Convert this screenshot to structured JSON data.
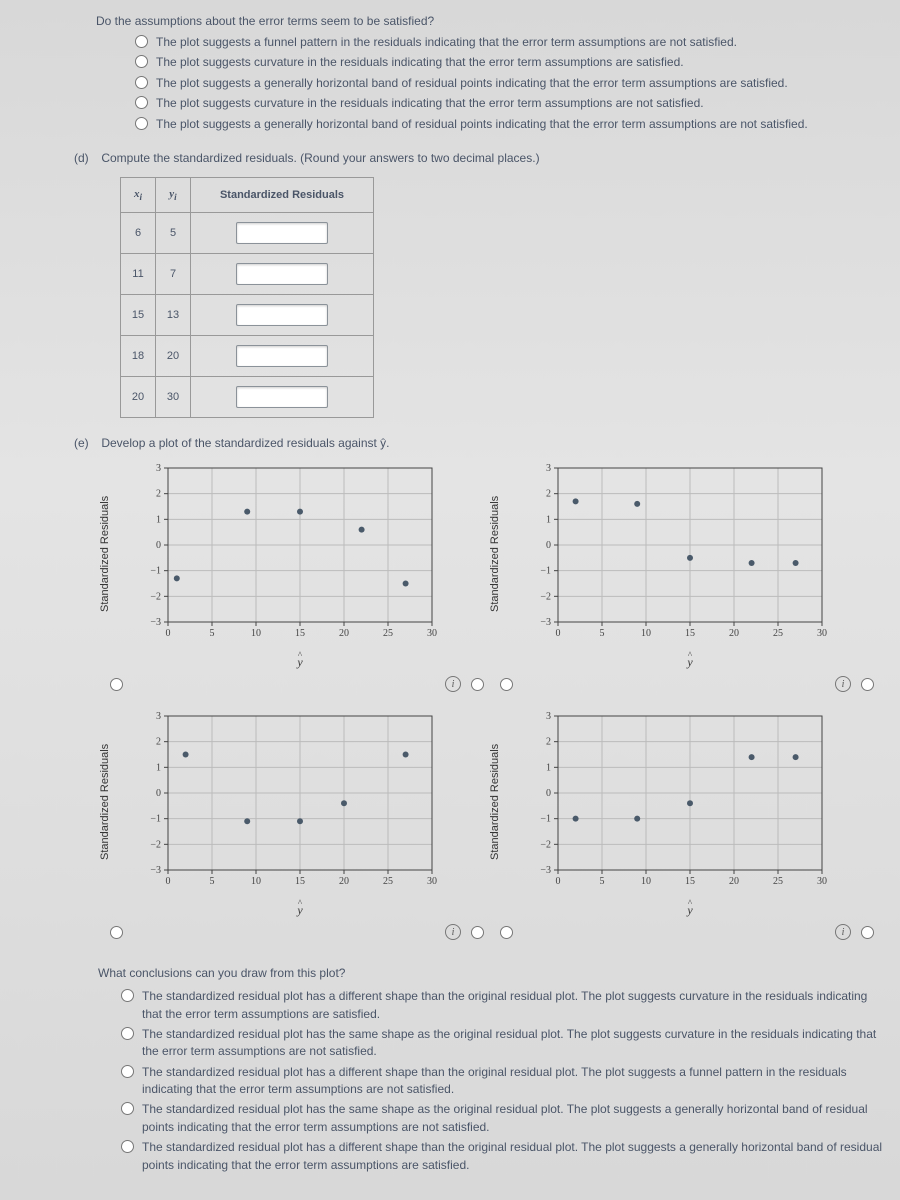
{
  "intro_q": "Do the assumptions about the error terms seem to be satisfied?",
  "intro_options": [
    "The plot suggests a funnel pattern in the residuals indicating that the error term assumptions are not satisfied.",
    "The plot suggests curvature in the residuals indicating that the error term assumptions are satisfied.",
    "The plot suggests a generally horizontal band of residual points indicating that the error term assumptions are satisfied.",
    "The plot suggests curvature in the residuals indicating that the error term assumptions are not satisfied.",
    "The plot suggests a generally horizontal band of residual points indicating that the error term assumptions are not satisfied."
  ],
  "part_d": {
    "label": "(d)",
    "text": "Compute the standardized residuals. (Round your answers to two decimal places.)",
    "col_x": "x",
    "col_x_sub": "i",
    "col_y": "y",
    "col_y_sub": "i",
    "col_sr": "Standardized Residuals",
    "rows": [
      {
        "x": 6,
        "y": 5
      },
      {
        "x": 11,
        "y": 7
      },
      {
        "x": 15,
        "y": 13
      },
      {
        "x": 18,
        "y": 20
      },
      {
        "x": 20,
        "y": 30
      }
    ]
  },
  "part_e": {
    "label": "(e)",
    "text": "Develop a plot of the standardized residuals against ŷ.",
    "chart": {
      "type": "scatter",
      "xlim": [
        0,
        30
      ],
      "ylim": [
        -3,
        3
      ],
      "xticks": [
        0,
        5,
        10,
        15,
        20,
        25,
        30
      ],
      "yticks": [
        -3,
        -2,
        -1,
        0,
        1,
        2,
        3
      ],
      "x_label": "ŷ",
      "y_label": "Standardized Residuals",
      "point_color": "#4a5a6a",
      "grid_color": "#bbbbbb",
      "plots": {
        "A": [
          [
            1,
            -1.3
          ],
          [
            9,
            1.3
          ],
          [
            15,
            1.3
          ],
          [
            22,
            0.6
          ],
          [
            27,
            -1.5
          ]
        ],
        "B": [
          [
            2,
            1.7
          ],
          [
            9,
            1.6
          ],
          [
            15,
            -0.5
          ],
          [
            22,
            -0.7
          ],
          [
            27,
            -0.7
          ]
        ],
        "C": [
          [
            2,
            1.5
          ],
          [
            9,
            -1.1
          ],
          [
            15,
            -1.1
          ],
          [
            20,
            -0.4
          ],
          [
            27,
            1.5
          ]
        ],
        "D": [
          [
            2,
            -1.0
          ],
          [
            9,
            -1.0
          ],
          [
            15,
            -0.4
          ],
          [
            22,
            1.4
          ],
          [
            27,
            1.4
          ]
        ]
      }
    }
  },
  "concl_q": "What conclusions can you draw from this plot?",
  "concl_options": [
    "The standardized residual plot has a different shape than the original residual plot. The plot suggests curvature in the residuals indicating that the error term assumptions are satisfied.",
    "The standardized residual plot has the same shape as the original residual plot. The plot suggests curvature in the residuals indicating that the error term assumptions are not satisfied.",
    "The standardized residual plot has a different shape than the original residual plot. The plot suggests a funnel pattern in the residuals indicating that the error term assumptions are not satisfied.",
    "The standardized residual plot has the same shape as the original residual plot. The plot suggests a generally horizontal band of residual points indicating that the error term assumptions are not satisfied.",
    "The standardized residual plot has a different shape than the original residual plot. The plot suggests a generally horizontal band of residual points indicating that the error term assumptions are satisfied."
  ]
}
